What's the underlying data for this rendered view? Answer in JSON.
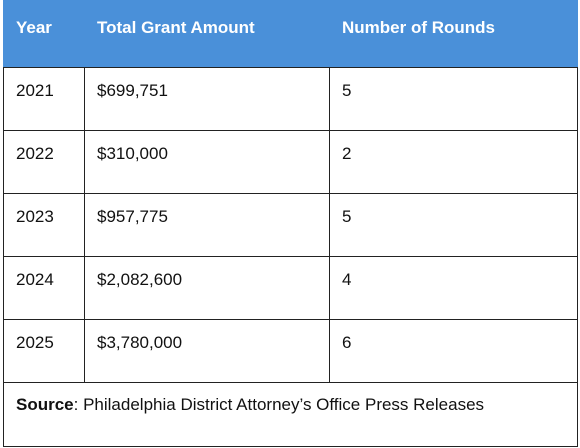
{
  "table": {
    "header": [
      "Year",
      "Total Grant Amount",
      "Number of Rounds"
    ],
    "rows": [
      [
        "2021",
        "$699,751",
        5
      ],
      [
        "2022",
        "$310,000",
        2
      ],
      [
        "2023",
        "$957,775",
        5
      ],
      [
        "2024",
        "$2,082,600",
        4
      ],
      [
        "2025",
        "$3,780,000",
        6
      ]
    ]
  },
  "footer": {
    "label": "Source",
    "text": ": Philadelphia District Attorney’s Office Press Releases"
  }
}
